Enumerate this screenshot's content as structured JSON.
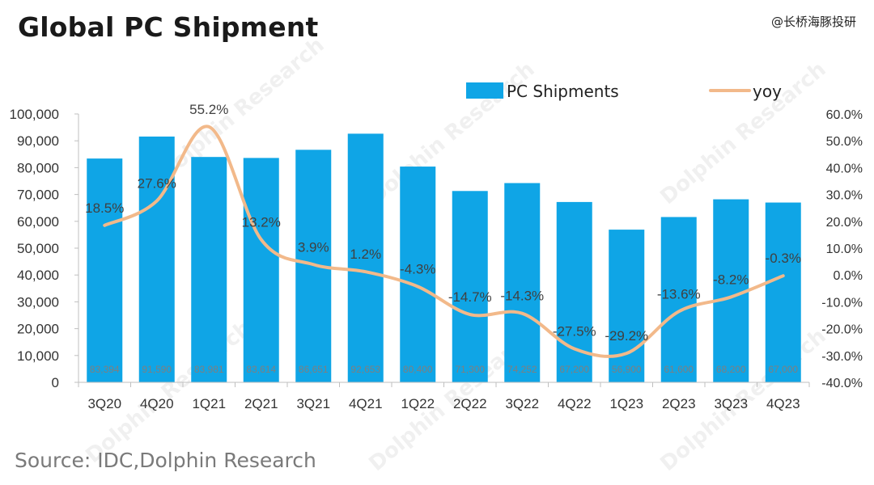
{
  "header": {
    "title": "Global PC Shipment",
    "brand": "@长桥海豚投研"
  },
  "footer": {
    "source": "Source: IDC,Dolphin Research"
  },
  "colors": {
    "bar": "#0fa5e6",
    "line": "#f2b98a",
    "axis_text": "#333333",
    "bar_label": "#7f7f7f"
  },
  "chart_data": {
    "type": "bar",
    "categories": [
      "3Q20",
      "4Q20",
      "1Q21",
      "2Q21",
      "3Q21",
      "4Q21",
      "1Q22",
      "2Q22",
      "3Q22",
      "4Q22",
      "1Q23",
      "2Q23",
      "3Q23",
      "4Q23"
    ],
    "series": [
      {
        "name": "PC Shipments",
        "type": "bar",
        "axis": "left",
        "values": [
          83394,
          91590,
          83981,
          83614,
          86651,
          92653,
          80400,
          71300,
          74252,
          67200,
          56900,
          61600,
          68200,
          67000
        ],
        "labels": [
          "83,394",
          "91,590",
          "83,981",
          "83,614",
          "86,651",
          "92,653",
          "80,400",
          "71,300",
          "74,252",
          "67,200",
          "56,900",
          "61,600",
          "68,200",
          "67,000"
        ]
      },
      {
        "name": "yoy",
        "type": "line",
        "axis": "right",
        "values": [
          18.5,
          27.6,
          55.2,
          13.2,
          3.9,
          1.2,
          -4.3,
          -14.7,
          -14.3,
          -27.5,
          -29.2,
          -13.6,
          -8.2,
          -0.3
        ],
        "labels": [
          "18.5%",
          "27.6%",
          "55.2%",
          "13.2%",
          "3.9%",
          "1.2%",
          "-4.3%",
          "-14.7%",
          "-14.3%",
          "-27.5%",
          "-29.2%",
          "-13.6%",
          "-8.2%",
          "-0.3%"
        ]
      }
    ],
    "y_left": {
      "ylim": [
        0,
        100000
      ],
      "ticks": [
        0,
        10000,
        20000,
        30000,
        40000,
        50000,
        60000,
        70000,
        80000,
        90000,
        100000
      ],
      "tick_labels": [
        "0",
        "10,000",
        "20,000",
        "30,000",
        "40,000",
        "50,000",
        "60,000",
        "70,000",
        "80,000",
        "90,000",
        "100,000"
      ]
    },
    "y_right": {
      "ylim": [
        -40,
        60
      ],
      "ticks": [
        -40,
        -30,
        -20,
        -10,
        0,
        10,
        20,
        30,
        40,
        50,
        60
      ],
      "tick_labels": [
        "-40.0%",
        "-30.0%",
        "-20.0%",
        "-10.0%",
        "0.0%",
        "10.0%",
        "20.0%",
        "30.0%",
        "40.0%",
        "50.0%",
        "60.0%"
      ]
    },
    "legend": {
      "position": "top",
      "entries": [
        "PC Shipments",
        "yoy"
      ]
    },
    "grid": false
  }
}
